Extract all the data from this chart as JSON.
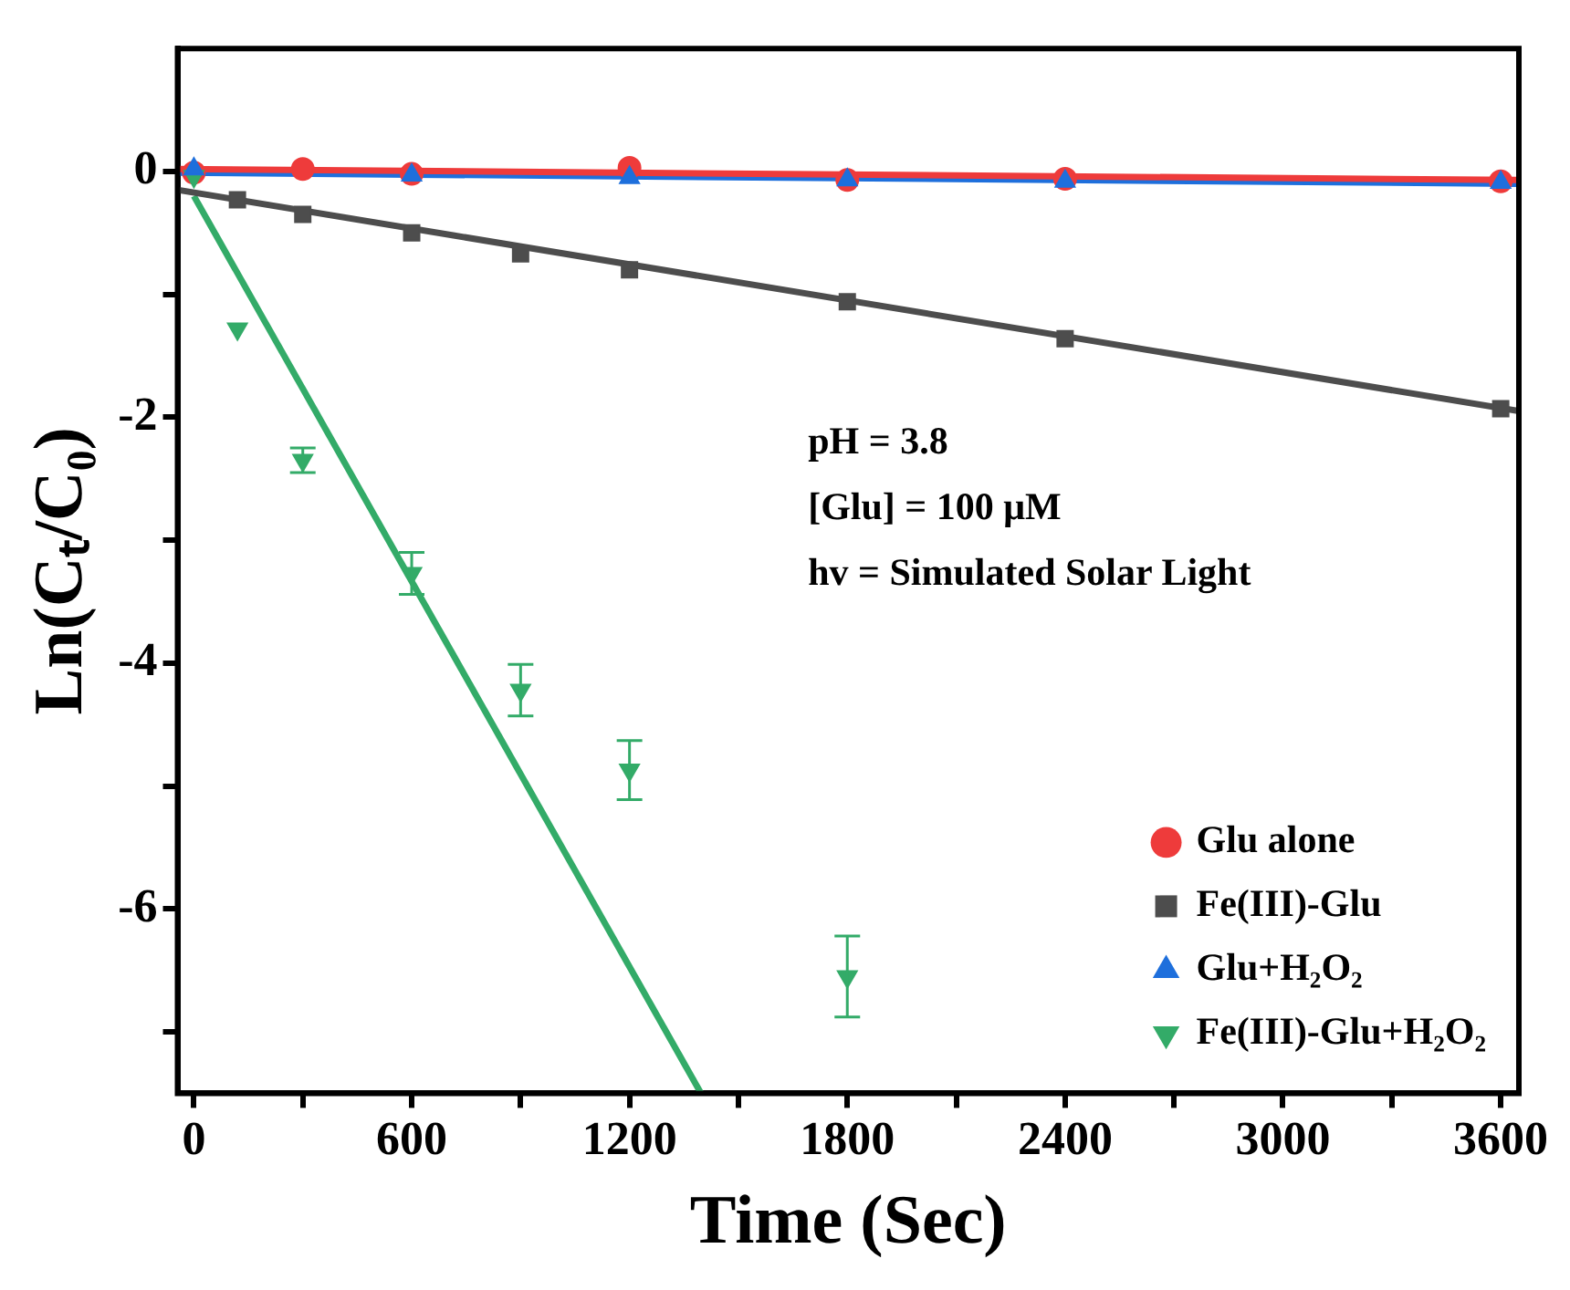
{
  "chart_data": {
    "type": "scatter",
    "xlabel": "Time (Sec)",
    "ylabel": "Ln(Cₜ/C₀)",
    "xlim": [
      -45,
      3650
    ],
    "ylim": [
      -7.5,
      1
    ],
    "xticks": [
      0,
      {
        "value": 300,
        "label": null
      },
      600,
      {
        "value": 900,
        "label": null
      },
      1200,
      {
        "value": 1500,
        "label": null
      },
      1800,
      {
        "value": 2100,
        "label": null
      },
      2400,
      {
        "value": 2700,
        "label": null
      },
      3000,
      {
        "value": 3300,
        "label": null
      },
      3600
    ],
    "yticks": [
      {
        "value": -7,
        "label": null
      },
      -6,
      {
        "value": -5,
        "label": null
      },
      -4,
      {
        "value": -3,
        "label": null
      },
      -2,
      {
        "value": -1,
        "label": null
      },
      0
    ],
    "grid": false,
    "legend": "bottom right",
    "annotations": [
      "pH = 3.8",
      "[Glu] = 100 μM",
      "hv = Simulated Solar Light"
    ],
    "series": [
      {
        "name": "Glu alone",
        "color": "#ee3b3b",
        "marker": "circle",
        "x": [
          0,
          300,
          600,
          1200,
          1800,
          2400,
          3600
        ],
        "values": [
          -0.01,
          0.02,
          -0.02,
          0.03,
          -0.07,
          -0.06,
          -0.08
        ]
      },
      {
        "name": "Fe(III)-Glu",
        "color": "#4d4d4d",
        "marker": "square",
        "x": [
          120,
          300,
          600,
          900,
          1200,
          1800,
          2400,
          3600
        ],
        "values": [
          -0.23,
          -0.35,
          -0.5,
          -0.67,
          -0.8,
          -1.06,
          -1.36,
          -1.93
        ]
      },
      {
        "name": "Glu+H₂O₂",
        "color": "#1e6fdc",
        "marker": "triangle",
        "x": [
          0,
          600,
          1200,
          1800,
          2400,
          3600
        ],
        "values": [
          0.02,
          -0.03,
          -0.05,
          -0.07,
          -0.08,
          -0.09
        ]
      },
      {
        "name": "Fe(III)-Glu+H₂O₂",
        "color": "#33ab68",
        "marker": "triangle-down",
        "x": [
          0,
          120,
          300,
          600,
          900,
          1200,
          1800
        ],
        "values": [
          -0.04,
          -1.28,
          -2.35,
          -3.27,
          -4.22,
          -4.87,
          -6.55
        ],
        "errors": [
          null,
          null,
          0.1,
          0.17,
          0.21,
          0.24,
          0.33
        ]
      },
      {
        "type": "line",
        "color": "#ee3b3b",
        "marker": "none",
        "x": [
          -45,
          3650
        ],
        "values": [
          0.02,
          -0.07
        ]
      },
      {
        "type": "line",
        "color": "#1e6fdc",
        "marker": "none",
        "x": [
          -45,
          3650
        ],
        "values": [
          -0.01,
          -0.1
        ]
      },
      {
        "type": "line",
        "color": "#4d4d4d",
        "marker": "none",
        "x": [
          -45,
          3650
        ],
        "values": [
          -0.15,
          -1.95
        ]
      },
      {
        "type": "line",
        "color": "#33ab68",
        "marker": "none",
        "x": [
          0,
          1397
        ],
        "values": [
          -0.2,
          -7.5
        ]
      }
    ]
  }
}
